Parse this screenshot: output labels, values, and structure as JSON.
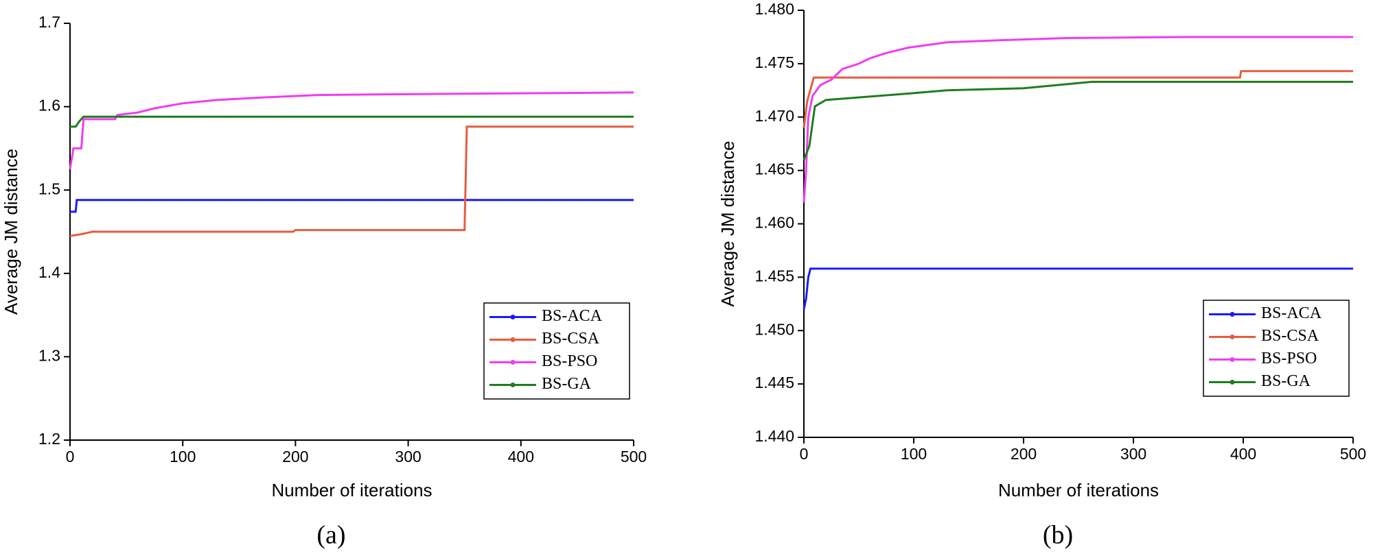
{
  "chart_data": [
    {
      "type": "line",
      "caption": "(a)",
      "xlabel": "Number of iterations",
      "ylabel": "Average JM distance",
      "xlim": [
        0,
        500
      ],
      "xticks": [
        0,
        100,
        200,
        300,
        400,
        500
      ],
      "ylim": [
        1.2,
        1.7
      ],
      "yticks": [
        1.2,
        1.3,
        1.4,
        1.5,
        1.6,
        1.7
      ],
      "legend": "lower right",
      "series": [
        {
          "name": "BS-ACA",
          "color": "#1a1aff",
          "x": [
            0,
            5,
            6,
            500
          ],
          "values": [
            1.474,
            1.474,
            1.488,
            1.488
          ]
        },
        {
          "name": "BS-CSA",
          "color": "#e65c3c",
          "x": [
            0,
            10,
            20,
            198,
            200,
            350,
            352,
            500
          ],
          "values": [
            1.445,
            1.447,
            1.45,
            1.45,
            1.452,
            1.452,
            1.576,
            1.576
          ]
        },
        {
          "name": "BS-PSO",
          "color": "#f03cf0",
          "x": [
            0,
            3,
            10,
            12,
            40,
            42,
            60,
            75,
            100,
            130,
            170,
            220,
            300,
            400,
            500
          ],
          "values": [
            1.525,
            1.55,
            1.55,
            1.585,
            1.585,
            1.59,
            1.593,
            1.598,
            1.604,
            1.608,
            1.611,
            1.614,
            1.615,
            1.616,
            1.617
          ]
        },
        {
          "name": "BS-GA",
          "color": "#1e7d1e",
          "x": [
            0,
            5,
            8,
            12,
            500
          ],
          "values": [
            1.576,
            1.576,
            1.582,
            1.588,
            1.588
          ]
        }
      ]
    },
    {
      "type": "line",
      "caption": "(b)",
      "xlabel": "Number of iterations",
      "ylabel": "Average JM distance",
      "xlim": [
        0,
        500
      ],
      "xticks": [
        0,
        100,
        200,
        300,
        400,
        500
      ],
      "ylim": [
        1.44,
        1.48
      ],
      "yticks": [
        {
          "value": 1.44,
          "label": "1.440"
        },
        1.445,
        {
          "value": 1.45,
          "label": "1.450"
        },
        1.455,
        {
          "value": 1.46,
          "label": "1.460"
        },
        1.465,
        {
          "value": 1.47,
          "label": "1.470"
        },
        1.475,
        {
          "value": 1.48,
          "label": "1.480"
        }
      ],
      "legend": "lower right",
      "series": [
        {
          "name": "BS-ACA",
          "color": "#1a1aff",
          "x": [
            0,
            2,
            4,
            6,
            500
          ],
          "values": [
            1.452,
            1.453,
            1.455,
            1.4558,
            1.4558
          ]
        },
        {
          "name": "BS-CSA",
          "color": "#e65c3c",
          "x": [
            0,
            3,
            9,
            397,
            398,
            500
          ],
          "values": [
            1.469,
            1.4715,
            1.4737,
            1.4737,
            1.4743,
            1.4743
          ]
        },
        {
          "name": "BS-PSO",
          "color": "#f03cf0",
          "x": [
            0,
            2,
            4,
            8,
            15,
            25,
            35,
            50,
            60,
            75,
            95,
            130,
            180,
            240,
            350,
            500
          ],
          "values": [
            1.462,
            1.465,
            1.47,
            1.472,
            1.473,
            1.4735,
            1.4745,
            1.475,
            1.4755,
            1.476,
            1.4765,
            1.477,
            1.4772,
            1.4774,
            1.4775,
            1.4775
          ]
        },
        {
          "name": "BS-GA",
          "color": "#1e7d1e",
          "x": [
            0,
            5,
            10,
            20,
            45,
            95,
            130,
            200,
            262,
            500
          ],
          "values": [
            1.466,
            1.4673,
            1.471,
            1.4716,
            1.4718,
            1.4722,
            1.4725,
            1.4727,
            1.4733,
            1.4733
          ]
        }
      ]
    }
  ]
}
